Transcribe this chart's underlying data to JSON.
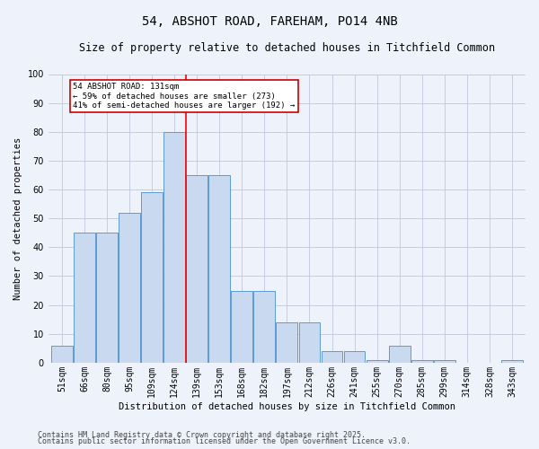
{
  "title": "54, ABSHOT ROAD, FAREHAM, PO14 4NB",
  "subtitle": "Size of property relative to detached houses in Titchfield Common",
  "xlabel": "Distribution of detached houses by size in Titchfield Common",
  "ylabel": "Number of detached properties",
  "categories": [
    "51sqm",
    "66sqm",
    "80sqm",
    "95sqm",
    "109sqm",
    "124sqm",
    "139sqm",
    "153sqm",
    "168sqm",
    "182sqm",
    "197sqm",
    "212sqm",
    "226sqm",
    "241sqm",
    "255sqm",
    "270sqm",
    "285sqm",
    "299sqm",
    "314sqm",
    "328sqm",
    "343sqm"
  ],
  "values": [
    6,
    45,
    45,
    52,
    59,
    80,
    65,
    65,
    25,
    25,
    14,
    14,
    4,
    4,
    1,
    6,
    1,
    1,
    0,
    0,
    1
  ],
  "bar_color": "#c9d9f0",
  "bar_edge_color": "#5b9bd5",
  "red_line_x": 5.5,
  "annotation_line1": "54 ABSHOT ROAD: 131sqm",
  "annotation_line2": "← 59% of detached houses are smaller (273)",
  "annotation_line3": "41% of semi-detached houses are larger (192) →",
  "annotation_box_facecolor": "#ffffff",
  "annotation_box_edgecolor": "#cc0000",
  "ylim": [
    0,
    100
  ],
  "yticks": [
    0,
    10,
    20,
    30,
    40,
    50,
    60,
    70,
    80,
    90,
    100
  ],
  "footer1": "Contains HM Land Registry data © Crown copyright and database right 2025.",
  "footer2": "Contains public sector information licensed under the Open Government Licence v3.0.",
  "background_color": "#eef2fb",
  "grid_color": "#c0c8dd",
  "title_fontsize": 10,
  "subtitle_fontsize": 8.5,
  "axis_label_fontsize": 7.5,
  "tick_fontsize": 7,
  "footer_fontsize": 6
}
